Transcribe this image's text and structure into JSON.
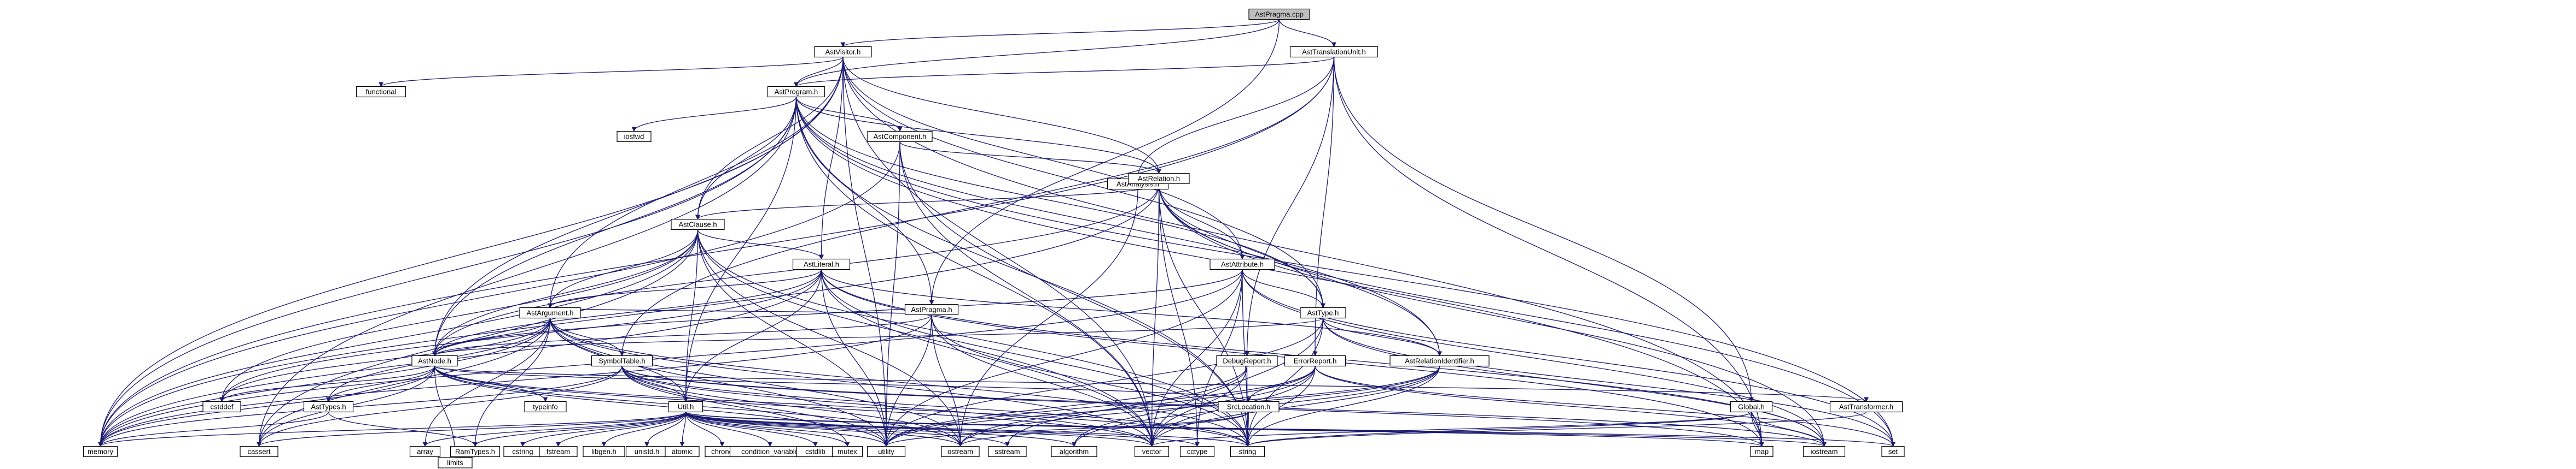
{
  "root": "AstPragma.cpp",
  "colors": {
    "root_fill": "#bfbfbf",
    "file_fill": "#ffffff",
    "link_text": "#ff0000",
    "edge": "#191970",
    "border": "#000000"
  },
  "nodes": [
    {
      "id": "AstPragma.cpp",
      "label": "AstPragma.cpp",
      "kind": "root"
    },
    {
      "id": "AstVisitor.h",
      "label": "AstVisitor.h",
      "kind": "file"
    },
    {
      "id": "AstTranslationUnit.h",
      "label": "AstTranslationUnit.h",
      "kind": "file"
    },
    {
      "id": "functional",
      "label": "functional",
      "kind": "system"
    },
    {
      "id": "AstProgram.h",
      "label": "AstProgram.h",
      "kind": "file"
    },
    {
      "id": "AstAnalysis.h",
      "label": "AstAnalysis.h",
      "kind": "file"
    },
    {
      "id": "iosfwd",
      "label": "iosfwd",
      "kind": "system"
    },
    {
      "id": "AstComponent.h",
      "label": "AstComponent.h",
      "kind": "file"
    },
    {
      "id": "AstRelation.h",
      "label": "AstRelation.h",
      "kind": "red"
    },
    {
      "id": "AstClause.h",
      "label": "AstClause.h",
      "kind": "file"
    },
    {
      "id": "AstLiteral.h",
      "label": "AstLiteral.h",
      "kind": "red"
    },
    {
      "id": "AstAttribute.h",
      "label": "AstAttribute.h",
      "kind": "file"
    },
    {
      "id": "AstArgument.h",
      "label": "AstArgument.h",
      "kind": "red"
    },
    {
      "id": "AstPragma.h",
      "label": "AstPragma.h",
      "kind": "file"
    },
    {
      "id": "AstType.h",
      "label": "AstType.h",
      "kind": "file"
    },
    {
      "id": "AstNode.h",
      "label": "AstNode.h",
      "kind": "file"
    },
    {
      "id": "SymbolTable.h",
      "label": "SymbolTable.h",
      "kind": "red"
    },
    {
      "id": "DebugReport.h",
      "label": "DebugReport.h",
      "kind": "file"
    },
    {
      "id": "ErrorReport.h",
      "label": "ErrorReport.h",
      "kind": "file"
    },
    {
      "id": "AstRelationIdentifier.h",
      "label": "AstRelationIdentifier.h",
      "kind": "file"
    },
    {
      "id": "AstTypes.h",
      "label": "AstTypes.h",
      "kind": "red"
    },
    {
      "id": "Util.h",
      "label": "Util.h",
      "kind": "red"
    },
    {
      "id": "SrcLocation.h",
      "label": "SrcLocation.h",
      "kind": "file"
    },
    {
      "id": "Global.h",
      "label": "Global.h",
      "kind": "file"
    },
    {
      "id": "AstTransformer.h",
      "label": "AstTransformer.h",
      "kind": "file"
    },
    {
      "id": "RamTypes.h",
      "label": "RamTypes.h",
      "kind": "red"
    },
    {
      "id": "cstddef",
      "label": "cstddef",
      "kind": "system"
    },
    {
      "id": "typeinfo",
      "label": "typeinfo",
      "kind": "system"
    },
    {
      "id": "memory",
      "label": "memory",
      "kind": "system"
    },
    {
      "id": "cassert",
      "label": "cassert",
      "kind": "system"
    },
    {
      "id": "array",
      "label": "array",
      "kind": "system"
    },
    {
      "id": "cstring",
      "label": "cstring",
      "kind": "system"
    },
    {
      "id": "fstream",
      "label": "fstream",
      "kind": "system"
    },
    {
      "id": "libgen.h",
      "label": "libgen.h",
      "kind": "system"
    },
    {
      "id": "unistd.h",
      "label": "unistd.h",
      "kind": "system"
    },
    {
      "id": "atomic",
      "label": "atomic",
      "kind": "system"
    },
    {
      "id": "chrono",
      "label": "chrono",
      "kind": "system"
    },
    {
      "id": "condition_variable",
      "label": "condition_variable",
      "kind": "system"
    },
    {
      "id": "cstdlib",
      "label": "cstdlib",
      "kind": "system"
    },
    {
      "id": "mutex",
      "label": "mutex",
      "kind": "system"
    },
    {
      "id": "utility",
      "label": "utility",
      "kind": "system"
    },
    {
      "id": "ostream",
      "label": "ostream",
      "kind": "system"
    },
    {
      "id": "sstream",
      "label": "sstream",
      "kind": "system"
    },
    {
      "id": "algorithm",
      "label": "algorithm",
      "kind": "system"
    },
    {
      "id": "vector",
      "label": "vector",
      "kind": "system"
    },
    {
      "id": "cctype",
      "label": "cctype",
      "kind": "system"
    },
    {
      "id": "string",
      "label": "string",
      "kind": "system"
    },
    {
      "id": "map",
      "label": "map",
      "kind": "system"
    },
    {
      "id": "iostream",
      "label": "iostream",
      "kind": "system"
    },
    {
      "id": "set",
      "label": "set",
      "kind": "system"
    },
    {
      "id": "limits",
      "label": "limits",
      "kind": "system"
    }
  ],
  "edges": [
    [
      "AstPragma.cpp",
      "AstVisitor.h"
    ],
    [
      "AstPragma.cpp",
      "AstTranslationUnit.h"
    ],
    [
      "AstPragma.cpp",
      "AstProgram.h"
    ],
    [
      "AstPragma.cpp",
      "AstPragma.h"
    ],
    [
      "AstVisitor.h",
      "functional"
    ],
    [
      "AstVisitor.h",
      "AstProgram.h"
    ],
    [
      "AstVisitor.h",
      "AstRelation.h"
    ],
    [
      "AstVisitor.h",
      "AstClause.h"
    ],
    [
      "AstVisitor.h",
      "AstLiteral.h"
    ],
    [
      "AstVisitor.h",
      "AstAttribute.h"
    ],
    [
      "AstVisitor.h",
      "AstArgument.h"
    ],
    [
      "AstVisitor.h",
      "AstType.h"
    ],
    [
      "AstVisitor.h",
      "AstNode.h"
    ],
    [
      "AstVisitor.h",
      "memory"
    ],
    [
      "AstVisitor.h",
      "utility"
    ],
    [
      "AstVisitor.h",
      "vector"
    ],
    [
      "AstVisitor.h",
      "map"
    ],
    [
      "AstTranslationUnit.h",
      "AstProgram.h"
    ],
    [
      "AstTranslationUnit.h",
      "AstAnalysis.h"
    ],
    [
      "AstTranslationUnit.h",
      "SymbolTable.h"
    ],
    [
      "AstTranslationUnit.h",
      "DebugReport.h"
    ],
    [
      "AstTranslationUnit.h",
      "ErrorReport.h"
    ],
    [
      "AstTranslationUnit.h",
      "Global.h"
    ],
    [
      "AstTranslationUnit.h",
      "memory"
    ],
    [
      "AstTranslationUnit.h",
      "map"
    ],
    [
      "AstAnalysis.h",
      "ostream"
    ],
    [
      "AstProgram.h",
      "iosfwd"
    ],
    [
      "AstProgram.h",
      "AstComponent.h"
    ],
    [
      "AstProgram.h",
      "AstRelation.h"
    ],
    [
      "AstProgram.h",
      "AstPragma.h"
    ],
    [
      "AstProgram.h",
      "AstType.h"
    ],
    [
      "AstProgram.h",
      "AstClause.h"
    ],
    [
      "AstProgram.h",
      "AstRelationIdentifier.h"
    ],
    [
      "AstProgram.h",
      "AstNode.h"
    ],
    [
      "AstProgram.h",
      "Util.h"
    ],
    [
      "AstProgram.h",
      "memory"
    ],
    [
      "AstProgram.h",
      "cassert"
    ],
    [
      "AstProgram.h",
      "map"
    ],
    [
      "AstProgram.h",
      "vector"
    ],
    [
      "AstProgram.h",
      "string"
    ],
    [
      "AstProgram.h",
      "set"
    ],
    [
      "AstComponent.h",
      "AstRelation.h"
    ],
    [
      "AstComponent.h",
      "memory"
    ],
    [
      "AstComponent.h",
      "vector"
    ],
    [
      "AstComponent.h",
      "string"
    ],
    [
      "AstComponent.h",
      "utility"
    ],
    [
      "AstRelation.h",
      "AstClause.h"
    ],
    [
      "AstRelation.h",
      "AstAttribute.h"
    ],
    [
      "AstRelation.h",
      "AstType.h"
    ],
    [
      "AstRelation.h",
      "AstRelationIdentifier.h"
    ],
    [
      "AstRelation.h",
      "AstNode.h"
    ],
    [
      "AstRelation.h",
      "memory"
    ],
    [
      "AstRelation.h",
      "cctype"
    ],
    [
      "AstRelation.h",
      "iostream"
    ],
    [
      "AstRelation.h",
      "set"
    ],
    [
      "AstRelation.h",
      "string"
    ],
    [
      "AstRelation.h",
      "vector"
    ],
    [
      "AstClause.h",
      "AstLiteral.h"
    ],
    [
      "AstClause.h",
      "AstArgument.h"
    ],
    [
      "AstClause.h",
      "AstNode.h"
    ],
    [
      "AstClause.h",
      "Util.h"
    ],
    [
      "AstClause.h",
      "memory"
    ],
    [
      "AstClause.h",
      "cstddef"
    ],
    [
      "AstClause.h",
      "string"
    ],
    [
      "AstClause.h",
      "vector"
    ],
    [
      "AstClause.h",
      "ostream"
    ],
    [
      "AstClause.h",
      "utility"
    ],
    [
      "AstClause.h",
      "cassert"
    ],
    [
      "AstLiteral.h",
      "AstArgument.h"
    ],
    [
      "AstLiteral.h",
      "AstNode.h"
    ],
    [
      "AstLiteral.h",
      "AstRelationIdentifier.h"
    ],
    [
      "AstLiteral.h",
      "Util.h"
    ],
    [
      "AstLiteral.h",
      "memory"
    ],
    [
      "AstLiteral.h",
      "string"
    ],
    [
      "AstLiteral.h",
      "vector"
    ],
    [
      "AstLiteral.h",
      "map"
    ],
    [
      "AstLiteral.h",
      "cstddef"
    ],
    [
      "AstLiteral.h",
      "iostream"
    ],
    [
      "AstLiteral.h",
      "utility"
    ],
    [
      "AstAttribute.h",
      "AstType.h"
    ],
    [
      "AstAttribute.h",
      "AstNode.h"
    ],
    [
      "AstAttribute.h",
      "memory"
    ],
    [
      "AstAttribute.h",
      "string"
    ],
    [
      "AstAttribute.h",
      "vector"
    ],
    [
      "AstAttribute.h",
      "cctype"
    ],
    [
      "AstAttribute.h",
      "iostream"
    ],
    [
      "AstAttribute.h",
      "set"
    ],
    [
      "AstAttribute.h",
      "utility"
    ],
    [
      "AstArgument.h",
      "AstNode.h"
    ],
    [
      "AstArgument.h",
      "AstTypes.h"
    ],
    [
      "AstArgument.h",
      "SymbolTable.h"
    ],
    [
      "AstArgument.h",
      "Util.h"
    ],
    [
      "AstArgument.h",
      "cstddef"
    ],
    [
      "AstArgument.h",
      "memory"
    ],
    [
      "AstArgument.h",
      "cassert"
    ],
    [
      "AstArgument.h",
      "array"
    ],
    [
      "AstArgument.h",
      "string"
    ],
    [
      "AstArgument.h",
      "vector"
    ],
    [
      "AstArgument.h",
      "utility"
    ],
    [
      "AstArgument.h",
      "ostream"
    ],
    [
      "AstArgument.h",
      "RamTypes.h"
    ],
    [
      "AstPragma.h",
      "AstNode.h"
    ],
    [
      "AstPragma.h",
      "AstArgument.h"
    ],
    [
      "AstPragma.h",
      "string"
    ],
    [
      "AstPragma.h",
      "utility"
    ],
    [
      "AstPragma.h",
      "vector"
    ],
    [
      "AstPragma.h",
      "ostream"
    ],
    [
      "AstPragma.h",
      "memory"
    ],
    [
      "AstType.h",
      "AstNode.h"
    ],
    [
      "AstType.h",
      "AstRelationIdentifier.h"
    ],
    [
      "AstType.h",
      "string"
    ],
    [
      "AstType.h",
      "set"
    ],
    [
      "AstType.h",
      "iostream"
    ],
    [
      "AstType.h",
      "vector"
    ],
    [
      "AstType.h",
      "utility"
    ],
    [
      "AstNode.h",
      "AstTypes.h"
    ],
    [
      "AstNode.h",
      "SrcLocation.h"
    ],
    [
      "AstNode.h",
      "AstTransformer.h"
    ],
    [
      "AstNode.h",
      "typeinfo"
    ],
    [
      "AstNode.h",
      "memory"
    ],
    [
      "AstNode.h",
      "cassert"
    ],
    [
      "AstNode.h",
      "vector"
    ],
    [
      "AstNode.h",
      "ostream"
    ],
    [
      "AstNode.h",
      "string"
    ],
    [
      "AstNode.h",
      "limits"
    ],
    [
      "AstNode.h",
      "utility"
    ],
    [
      "AstNode.h",
      "cstddef"
    ],
    [
      "SymbolTable.h",
      "Util.h"
    ],
    [
      "SymbolTable.h",
      "cassert"
    ],
    [
      "SymbolTable.h",
      "memory"
    ],
    [
      "SymbolTable.h",
      "ostream"
    ],
    [
      "SymbolTable.h",
      "string"
    ],
    [
      "SymbolTable.h",
      "vector"
    ],
    [
      "SymbolTable.h",
      "utility"
    ],
    [
      "SymbolTable.h",
      "mutex"
    ],
    [
      "SymbolTable.h",
      "map"
    ],
    [
      "SymbolTable.h",
      "iostream"
    ],
    [
      "DebugReport.h",
      "utility"
    ],
    [
      "DebugReport.h",
      "sstream"
    ],
    [
      "DebugReport.h",
      "string"
    ],
    [
      "DebugReport.h",
      "vector"
    ],
    [
      "ErrorReport.h",
      "SrcLocation.h"
    ],
    [
      "ErrorReport.h",
      "algorithm"
    ],
    [
      "ErrorReport.h",
      "iostream"
    ],
    [
      "ErrorReport.h",
      "set"
    ],
    [
      "ErrorReport.h",
      "string"
    ],
    [
      "ErrorReport.h",
      "vector"
    ],
    [
      "ErrorReport.h",
      "utility"
    ],
    [
      "ErrorReport.h",
      "ostream"
    ],
    [
      "AstRelationIdentifier.h",
      "algorithm"
    ],
    [
      "AstRelationIdentifier.h",
      "string"
    ],
    [
      "AstRelationIdentifier.h",
      "vector"
    ],
    [
      "AstRelationIdentifier.h",
      "ostream"
    ],
    [
      "AstRelationIdentifier.h",
      "utility"
    ],
    [
      "AstTypes.h",
      "RamTypes.h"
    ],
    [
      "AstTypes.h",
      "memory"
    ],
    [
      "Util.h",
      "RamTypes.h"
    ],
    [
      "Util.h",
      "memory"
    ],
    [
      "Util.h",
      "cassert"
    ],
    [
      "Util.h",
      "array"
    ],
    [
      "Util.h",
      "cstring"
    ],
    [
      "Util.h",
      "fstream"
    ],
    [
      "Util.h",
      "libgen.h"
    ],
    [
      "Util.h",
      "unistd.h"
    ],
    [
      "Util.h",
      "atomic"
    ],
    [
      "Util.h",
      "chrono"
    ],
    [
      "Util.h",
      "condition_variable"
    ],
    [
      "Util.h",
      "cstdlib"
    ],
    [
      "Util.h",
      "mutex"
    ],
    [
      "Util.h",
      "utility"
    ],
    [
      "Util.h",
      "ostream"
    ],
    [
      "Util.h",
      "sstream"
    ],
    [
      "Util.h",
      "algorithm"
    ],
    [
      "Util.h",
      "vector"
    ],
    [
      "Util.h",
      "cctype"
    ],
    [
      "Util.h",
      "string"
    ],
    [
      "Util.h",
      "map"
    ],
    [
      "Util.h",
      "iostream"
    ],
    [
      "Util.h",
      "set"
    ],
    [
      "SrcLocation.h",
      "string"
    ],
    [
      "SrcLocation.h",
      "utility"
    ],
    [
      "SrcLocation.h",
      "ostream"
    ],
    [
      "Global.h",
      "map"
    ],
    [
      "Global.h",
      "iostream"
    ],
    [
      "Global.h",
      "string"
    ],
    [
      "Global.h",
      "vector"
    ],
    [
      "AstTransformer.h",
      "string"
    ],
    [
      "RamTypes.h",
      "limits"
    ]
  ]
}
